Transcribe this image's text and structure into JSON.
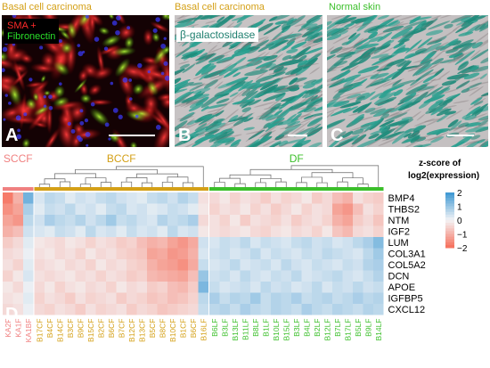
{
  "titles": {
    "a": "Basal cell carcinoma",
    "b": "Basal cell carcinoma",
    "c": "Normal skin"
  },
  "panel_a": {
    "label_line1": "SMA +",
    "label_line2": "Fibronectin",
    "letter": "A"
  },
  "panel_b": {
    "label": "β-galactosidase",
    "letter": "B"
  },
  "panel_c": {
    "letter": "C"
  },
  "panel_d": {
    "letter": "D"
  },
  "colors": {
    "bcc_title": "#d4a017",
    "normal_title": "#3bbf2a",
    "sma": "#ff2a2a",
    "fibronectin": "#2adf2a",
    "galactosidase": "#1f7f6f",
    "sccf": "#f08080",
    "bccf": "#d4a017",
    "df": "#3bbf2a"
  },
  "heatmap": {
    "groups": [
      {
        "name": "SCCF",
        "count": 3
      },
      {
        "name": "BCCF",
        "count": 17
      },
      {
        "name": "DF",
        "count": 17
      }
    ],
    "samples": [
      "KA2F",
      "KA1F",
      "KA1BF",
      "B17CF",
      "B4CF",
      "B14CF",
      "B3CF",
      "B9CF",
      "B15CF",
      "B2CF",
      "B6CF",
      "B7CF",
      "B12CF",
      "B13CF",
      "B5CF",
      "B8CF",
      "B10CF",
      "B1CF",
      "B6CF",
      "B16LF",
      "B6LF",
      "B3LF",
      "B13LF",
      "B11LF",
      "B8LF",
      "B1LF",
      "B10LF",
      "B15LF",
      "B3LF",
      "B4LF",
      "B2LF",
      "B12LF",
      "B7LF",
      "B17LF",
      "B5LF",
      "B9LF",
      "B14LF"
    ],
    "genes": [
      "BMP4",
      "THBS2",
      "NTM",
      "IGF2",
      "LUM",
      "COL3A1",
      "COL5A2",
      "DCN",
      "APOE",
      "IGFBP5",
      "CXCL12"
    ],
    "legend_title_line1": "z-score of",
    "legend_title_line2": "log2(expression)",
    "legend_ticks": [
      "2",
      "1",
      "0",
      "−1",
      "−2"
    ],
    "z_range": [
      -2,
      2
    ],
    "values": [
      [
        -1.8,
        -1.0,
        1.4,
        0.3,
        0.6,
        0.5,
        0.2,
        0.4,
        0.3,
        0.5,
        0.6,
        0.4,
        0.3,
        0.2,
        0.5,
        0.6,
        0.4,
        0.7,
        0.5,
        -0.3,
        -0.4,
        -0.2,
        -0.5,
        -0.3,
        -0.4,
        -0.6,
        -0.3,
        -0.5,
        -0.4,
        -0.2,
        -0.6,
        -0.4,
        -0.8,
        -1.0,
        -0.3,
        -0.5,
        -0.6
      ],
      [
        -1.5,
        -1.2,
        0.8,
        0.2,
        0.5,
        0.4,
        0.6,
        0.3,
        0.4,
        0.2,
        0.5,
        0.6,
        0.3,
        0.4,
        0.2,
        0.3,
        0.5,
        0.4,
        0.2,
        -0.2,
        -0.5,
        -0.3,
        -0.4,
        -0.2,
        -0.5,
        -0.3,
        -0.6,
        -0.4,
        -0.2,
        -0.5,
        -0.3,
        -0.4,
        -1.2,
        -1.4,
        -0.8,
        -0.3,
        -0.5
      ],
      [
        -1.2,
        -1.4,
        0.6,
        0.4,
        0.8,
        0.6,
        0.5,
        0.7,
        0.4,
        0.6,
        0.9,
        0.5,
        0.6,
        0.4,
        0.3,
        0.7,
        0.5,
        0.6,
        0.8,
        -0.4,
        -0.3,
        -0.5,
        -0.2,
        -0.6,
        -0.3,
        -0.4,
        -0.5,
        -0.3,
        -0.6,
        -0.4,
        -0.3,
        -0.5,
        -1.0,
        -1.2,
        -0.6,
        -0.4,
        -0.7
      ],
      [
        -1.0,
        -0.8,
        0.4,
        0.3,
        0.2,
        0.5,
        0.4,
        0.2,
        0.6,
        0.3,
        0.4,
        0.2,
        0.5,
        0.3,
        0.4,
        0.2,
        0.6,
        0.3,
        0.4,
        -0.2,
        -0.3,
        -0.4,
        -0.3,
        -0.2,
        -0.4,
        -0.5,
        -0.3,
        -0.2,
        -0.4,
        -0.3,
        -0.5,
        -0.2,
        -0.7,
        -0.9,
        -0.4,
        -0.3,
        -0.5
      ],
      [
        -0.6,
        -0.4,
        0.2,
        -0.2,
        -0.3,
        -0.4,
        -0.2,
        -0.3,
        -0.5,
        -0.3,
        -0.4,
        -0.6,
        -0.5,
        -0.8,
        -1.0,
        -0.9,
        -1.2,
        -1.4,
        -1.1,
        0.4,
        0.3,
        0.5,
        0.4,
        0.6,
        0.3,
        0.5,
        0.4,
        0.3,
        0.5,
        0.6,
        0.4,
        0.5,
        0.3,
        0.4,
        0.6,
        0.8,
        1.2
      ],
      [
        -0.4,
        -0.3,
        0.1,
        -0.3,
        -0.2,
        -0.4,
        -0.3,
        -0.5,
        -0.2,
        -0.4,
        -0.3,
        -0.5,
        -0.6,
        -0.7,
        -1.2,
        -1.1,
        -1.4,
        -1.3,
        -1.0,
        0.3,
        0.4,
        0.5,
        0.3,
        0.4,
        0.6,
        0.3,
        0.5,
        0.4,
        0.3,
        0.5,
        0.4,
        0.6,
        0.5,
        0.4,
        0.3,
        0.6,
        0.9
      ],
      [
        -0.3,
        -0.5,
        0.2,
        -0.4,
        -0.3,
        -0.2,
        -0.4,
        -0.3,
        -0.5,
        -0.2,
        -0.4,
        -0.3,
        -0.5,
        -0.6,
        -1.0,
        -1.2,
        -1.3,
        -1.5,
        -1.1,
        0.5,
        0.3,
        0.4,
        0.6,
        0.3,
        0.4,
        0.5,
        0.3,
        0.6,
        0.4,
        0.3,
        0.5,
        0.4,
        0.3,
        0.5,
        0.4,
        0.7,
        0.8
      ],
      [
        -0.5,
        -0.2,
        0.3,
        -0.3,
        -0.4,
        -0.3,
        -0.2,
        -0.4,
        -0.3,
        -0.5,
        -0.3,
        -0.4,
        -0.6,
        -0.5,
        -0.9,
        -1.0,
        -1.1,
        -1.2,
        -0.8,
        1.0,
        0.4,
        0.5,
        0.3,
        0.6,
        0.4,
        0.3,
        0.5,
        0.4,
        0.6,
        0.3,
        0.4,
        0.5,
        0.6,
        0.4,
        0.3,
        0.5,
        0.7
      ],
      [
        -0.2,
        -0.4,
        0.1,
        -0.4,
        -0.2,
        -0.5,
        -0.3,
        -0.2,
        -0.4,
        -0.3,
        -0.5,
        -0.2,
        -0.4,
        -0.3,
        -0.6,
        -0.5,
        -0.8,
        -0.9,
        -0.6,
        1.3,
        0.5,
        0.3,
        0.4,
        0.5,
        0.3,
        0.6,
        0.4,
        0.5,
        0.3,
        0.4,
        0.6,
        0.3,
        0.5,
        0.4,
        0.6,
        0.4,
        0.5
      ],
      [
        -0.3,
        -0.2,
        0.2,
        -0.5,
        -0.3,
        -0.4,
        -0.6,
        -0.3,
        -0.5,
        -0.4,
        -0.3,
        -0.6,
        -0.4,
        -0.5,
        -0.7,
        -0.6,
        -0.8,
        -0.7,
        -0.5,
        0.6,
        0.8,
        0.5,
        0.7,
        0.6,
        0.9,
        0.5,
        0.7,
        0.6,
        0.8,
        0.5,
        0.6,
        0.7,
        0.5,
        0.6,
        0.8,
        0.6,
        0.7
      ],
      [
        -0.4,
        -0.3,
        0.1,
        -0.4,
        -0.5,
        -0.3,
        -0.4,
        -0.6,
        -0.3,
        -0.5,
        -0.4,
        -0.3,
        -0.6,
        -0.4,
        -0.5,
        -0.7,
        -0.6,
        -0.5,
        -0.4,
        0.5,
        0.6,
        0.7,
        0.5,
        0.8,
        0.6,
        0.5,
        0.7,
        0.6,
        0.5,
        0.8,
        0.6,
        0.5,
        0.7,
        0.6,
        0.5,
        0.7,
        0.6
      ]
    ]
  }
}
